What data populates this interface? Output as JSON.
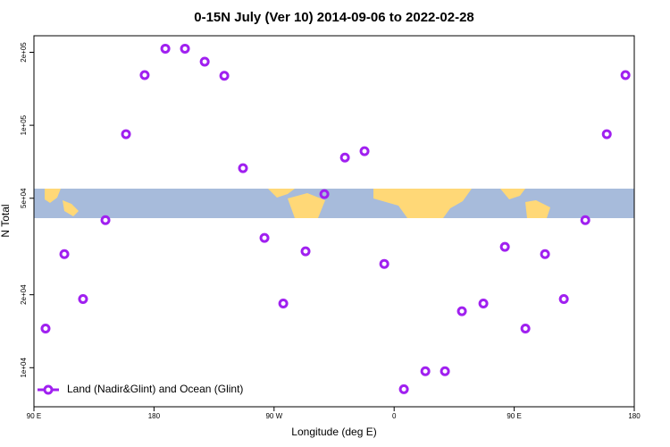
{
  "chart_data": {
    "type": "scatter",
    "title": "0-15N July (Ver 10)   2014-09-06 to 2022-02-28",
    "x_label": "Longitude (deg E)",
    "y_label": "N Total",
    "log_y": true,
    "legend_position": "bottom-left",
    "series": [
      {
        "name": "Land (Nadir&Glint) and Ocean (Glint)",
        "color": "#a020f0",
        "x": [
          98.7,
          112.8,
          126.8,
          143.6,
          159.0,
          173.0,
          188.5,
          203.2,
          218.0,
          232.7,
          246.7,
          262.8,
          276.9,
          293.6,
          307.7,
          323.1,
          337.8,
          352.6,
          367.3,
          383.4,
          398.1,
          410.8,
          426.9,
          443.0,
          458.4,
          473.1,
          487.2,
          503.3,
          519.4,
          533.4
        ],
        "values": [
          14500,
          29400,
          19200,
          40600,
          91900,
          161000,
          207000,
          207000,
          183000,
          160000,
          66500,
          34300,
          18400,
          30200,
          52000,
          73600,
          78200,
          26800,
          8150,
          9670,
          9670,
          17100,
          18400,
          31500,
          14500,
          29400,
          19200,
          40600,
          91900,
          161000
        ]
      }
    ],
    "xlim": [
      90,
      540
    ],
    "xticks": [
      {
        "value": 90,
        "label": "90 E"
      },
      180,
      {
        "value": 270,
        "label": "90 W"
      },
      {
        "value": 360,
        "label": "0"
      },
      {
        "value": 450,
        "label": "90 E"
      },
      {
        "value": 540,
        "label": "180"
      }
    ],
    "ylim": [
      6900,
      234000
    ],
    "yticks": [
      {
        "value": 10000,
        "label": "1e+04"
      },
      {
        "value": 20000,
        "label": "2e+04"
      },
      {
        "value": 50000,
        "label": "5e+04"
      },
      {
        "value": 100000,
        "label": "1e+05"
      },
      {
        "value": 200000,
        "label": "2e+05"
      }
    ]
  }
}
